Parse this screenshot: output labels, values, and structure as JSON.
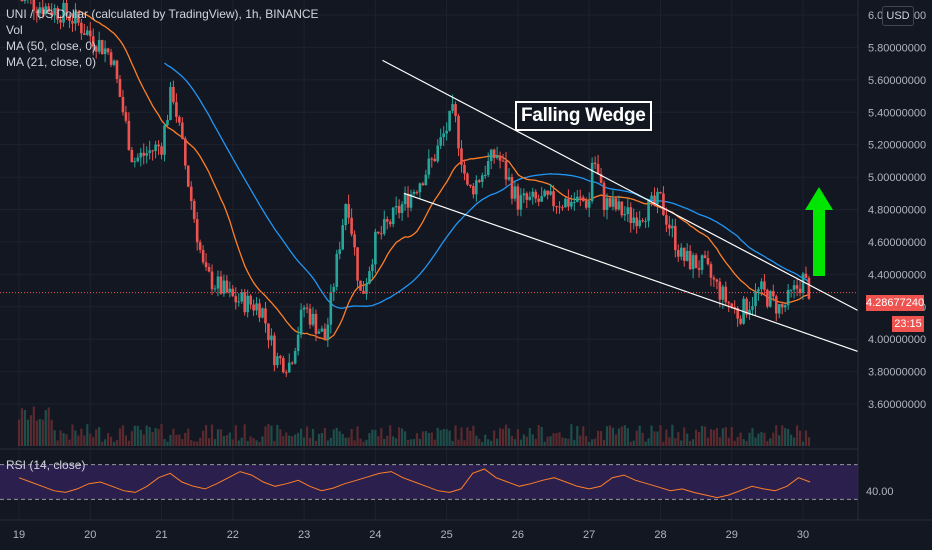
{
  "header": {
    "symbol_line": "UNI / US Dollar (calculated by TradingView), 1h, BINANCE",
    "vol_label": "Vol",
    "ma50_label": "MA (50, close, 0)",
    "ma21_label": "MA (21, close, 0)"
  },
  "currency_button": "USD",
  "annotation": {
    "pattern_label": "Falling Wedge"
  },
  "current_price": {
    "value_label": "4.28677240",
    "countdown_label": "23:15"
  },
  "rsi": {
    "label": "RSI (14, close)",
    "value_label": "40.00"
  },
  "colors": {
    "background": "#131722",
    "up_candle": "#26a69a",
    "down_candle": "#ef5350",
    "ma50": "#2196f3",
    "ma21": "#ff7f27",
    "rsi_line": "#ff7f27",
    "rsi_band": "#2a1f4d",
    "arrow": "#00e600",
    "wedge_lines": "#ffffff"
  },
  "chart_data": [
    {
      "type": "candlestick",
      "title": "UNI / US Dollar (calculated by TradingView), 1h, BINANCE",
      "x_ticks": [
        "19",
        "20",
        "21",
        "22",
        "23",
        "24",
        "25",
        "26",
        "27",
        "28",
        "29",
        "30"
      ],
      "y_ticks": [
        "6.00000000",
        "5.80000000",
        "5.60000000",
        "5.40000000",
        "5.20000000",
        "5.00000000",
        "4.80000000",
        "4.60000000",
        "4.40000000",
        "4.20000000",
        "4.00000000",
        "3.80000000",
        "3.60000000"
      ],
      "ylim": [
        3.5,
        6.05
      ],
      "xlim": [
        19.0,
        30.8
      ],
      "key_points": [
        {
          "day": 19.0,
          "close": 6.1
        },
        {
          "day": 19.7,
          "close": 6.0
        },
        {
          "day": 20.3,
          "close": 5.75
        },
        {
          "day": 20.6,
          "close": 5.1
        },
        {
          "day": 21.0,
          "close": 5.2
        },
        {
          "day": 21.15,
          "close": 5.55
        },
        {
          "day": 21.4,
          "close": 4.9
        },
        {
          "day": 21.6,
          "close": 4.4
        },
        {
          "day": 22.0,
          "close": 4.25
        },
        {
          "day": 22.4,
          "close": 4.2
        },
        {
          "day": 22.6,
          "close": 3.88
        },
        {
          "day": 22.8,
          "close": 3.85
        },
        {
          "day": 23.0,
          "close": 4.2
        },
        {
          "day": 23.3,
          "close": 4.0
        },
        {
          "day": 23.6,
          "close": 4.9
        },
        {
          "day": 23.8,
          "close": 4.25
        },
        {
          "day": 24.0,
          "close": 4.6
        },
        {
          "day": 24.5,
          "close": 4.9
        },
        {
          "day": 24.8,
          "close": 5.1
        },
        {
          "day": 25.1,
          "close": 5.4
        },
        {
          "day": 25.3,
          "close": 4.9
        },
        {
          "day": 25.7,
          "close": 5.15
        },
        {
          "day": 26.0,
          "close": 4.85
        },
        {
          "day": 26.5,
          "close": 4.85
        },
        {
          "day": 27.0,
          "close": 4.85
        },
        {
          "day": 27.05,
          "close": 5.15
        },
        {
          "day": 27.2,
          "close": 4.85
        },
        {
          "day": 27.6,
          "close": 4.75
        },
        {
          "day": 28.0,
          "close": 4.85
        },
        {
          "day": 28.3,
          "close": 4.5
        },
        {
          "day": 28.6,
          "close": 4.45
        },
        {
          "day": 28.9,
          "close": 4.25
        },
        {
          "day": 29.1,
          "close": 4.15
        },
        {
          "day": 29.4,
          "close": 4.3
        },
        {
          "day": 29.7,
          "close": 4.18
        },
        {
          "day": 30.0,
          "close": 4.37
        },
        {
          "day": 30.1,
          "close": 4.29
        }
      ],
      "current_price": 4.2867724,
      "series": [
        {
          "name": "MA (50, close, 0)",
          "color": "#2196f3"
        },
        {
          "name": "MA (21, close, 0)",
          "color": "#ff7f27"
        }
      ],
      "annotations": [
        "Falling Wedge"
      ],
      "wedge_upper": [
        {
          "day": 24.1,
          "price": 5.72
        },
        {
          "day": 30.8,
          "price": 4.17
        }
      ],
      "wedge_lower": [
        {
          "day": 24.4,
          "price": 4.9
        },
        {
          "day": 30.8,
          "price": 3.92
        }
      ]
    },
    {
      "type": "line",
      "title": "RSI (14, close)",
      "y_ticks": [
        "40.00"
      ],
      "bands": [
        30,
        70
      ],
      "values": [
        55,
        50,
        45,
        40,
        38,
        42,
        48,
        50,
        45,
        40,
        38,
        45,
        55,
        60,
        50,
        45,
        42,
        48,
        55,
        62,
        58,
        50,
        45,
        48,
        52,
        45,
        40,
        43,
        48,
        52,
        56,
        60,
        62,
        55,
        50,
        45,
        40,
        38,
        42,
        60,
        65,
        55,
        50,
        45,
        48,
        52,
        55,
        50,
        45,
        42,
        45,
        55,
        58,
        52,
        48,
        44,
        40,
        42,
        38,
        35,
        32,
        35,
        40,
        45,
        42,
        40,
        45,
        55,
        50
      ]
    }
  ]
}
